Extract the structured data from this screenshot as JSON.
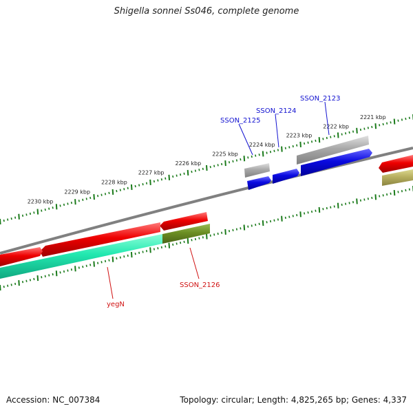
{
  "title": "Shigella sonnei Ss046, complete genome",
  "footer": {
    "accession": "Accession: NC_007384",
    "topology": "Topology: circular; Length: 4,825,265 bp; Genes: 4,337"
  },
  "ticks": [
    {
      "kb": 2221,
      "label": "2221 kbp"
    },
    {
      "kb": 2222,
      "label": "2222 kbp"
    },
    {
      "kb": 2223,
      "label": "2223 kbp"
    },
    {
      "kb": 2224,
      "label": "2224 kbp"
    },
    {
      "kb": 2225,
      "label": "2225 kbp"
    },
    {
      "kb": 2226,
      "label": "2226 kbp"
    },
    {
      "kb": 2227,
      "label": "2227 kbp"
    },
    {
      "kb": 2228,
      "label": "2228 kbp"
    },
    {
      "kb": 2229,
      "label": "2229 kbp"
    },
    {
      "kb": 2230,
      "label": "2230 kbp"
    }
  ],
  "gene_labels": [
    {
      "name": "SSON_2123",
      "color": "#1010d0"
    },
    {
      "name": "SSON_2124",
      "color": "#1010d0"
    },
    {
      "name": "SSON_2125",
      "color": "#1010d0"
    },
    {
      "name": "SSON_2126",
      "color": "#d01010"
    },
    {
      "name": "yegN",
      "color": "#d01010"
    }
  ],
  "colors": {
    "backbone": "#808080",
    "tick": "#1a7a1a",
    "gene_red": "#ee0000",
    "gene_blue": "#0a0ae0",
    "gene_gray": "#a8a8a8",
    "feature_teal": "#22e8b0",
    "feature_olive": "#6b8e23",
    "feature_khaki": "#b8b060"
  }
}
